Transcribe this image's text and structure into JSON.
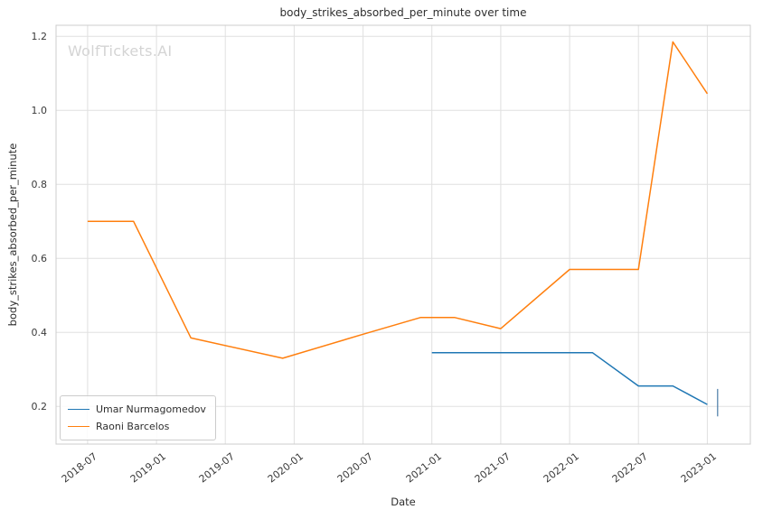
{
  "watermark": "WolfTickets.AI",
  "chart_data": {
    "type": "line",
    "title": "body_strikes_absorbed_per_minute over time",
    "xlabel": "Date",
    "ylabel": "body_strikes_absorbed_per_minute",
    "grid": true,
    "legend_position": "lower left",
    "x_ticks": [
      "2018-07",
      "2019-01",
      "2019-07",
      "2020-01",
      "2020-07",
      "2021-01",
      "2021-07",
      "2022-01",
      "2022-07",
      "2023-01"
    ],
    "y_ticks": [
      {
        "value": 0.2,
        "label": "0.2"
      },
      {
        "value": 0.4,
        "label": "0.4"
      },
      {
        "value": 0.6,
        "label": "0.6"
      },
      {
        "value": 0.8,
        "label": "0.8"
      },
      {
        "value": 1.0,
        "label": "1.0"
      },
      {
        "value": 1.2,
        "label": "1.2"
      }
    ],
    "xlim_months_from_2018_07": [
      -2.75,
      57.75
    ],
    "ylim": [
      0.098,
      1.23
    ],
    "series": [
      {
        "name": "Umar Nurmagomedov",
        "color": "#1f77b4",
        "points": [
          [
            "2021-01",
            0.345
          ],
          [
            "2022-03",
            0.345
          ],
          [
            "2022-07",
            0.255
          ],
          [
            "2022-10",
            0.255
          ],
          [
            "2023-01",
            0.205
          ]
        ]
      },
      {
        "name": "Raoni Barcelos",
        "color": "#ff7f0e",
        "points": [
          [
            "2018-07",
            0.7
          ],
          [
            "2018-11",
            0.7
          ],
          [
            "2019-04",
            0.385
          ],
          [
            "2019-12",
            0.33
          ],
          [
            "2020-07",
            0.395
          ],
          [
            "2020-12",
            0.44
          ],
          [
            "2021-03",
            0.44
          ],
          [
            "2021-07",
            0.41
          ],
          [
            "2022-01",
            0.57
          ],
          [
            "2022-07",
            0.57
          ],
          [
            "2022-10",
            1.185
          ],
          [
            "2023-01",
            1.045
          ]
        ]
      }
    ],
    "end_tick_marker": {
      "series": "Umar Nurmagomedov",
      "date": "2023-01",
      "x_offset_months": 0.9,
      "value": 0.21,
      "half_span": 0.037,
      "color": "#4a7ba6"
    },
    "colors": {
      "grid": "#e0e0e0",
      "spine": "#cccccc",
      "text": "#3a3a3a",
      "watermark": "#d4d4d4"
    }
  }
}
